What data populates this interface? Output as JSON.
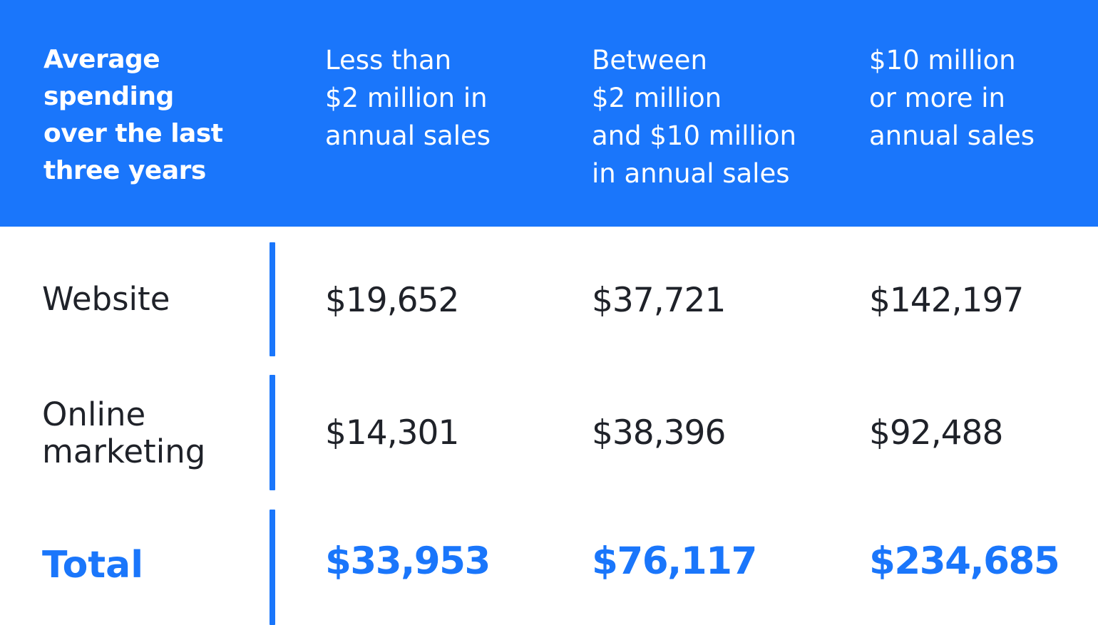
{
  "chart_data": {
    "type": "table",
    "title": "",
    "columns": [
      "Average\nspending\nover the last\nthree years",
      "Less than\n$2 million in\nannual sales",
      "Between\n$2 million\nand $10 million\nin annual sales",
      "$10 million\nor more in\nannual sales"
    ],
    "rows": [
      {
        "label": "Website",
        "values": [
          "$19,652",
          "$37,721",
          "$142,197"
        ]
      },
      {
        "label": "Online\nmarketing",
        "values": [
          "$14,301",
          "$38,396",
          "$92,488"
        ]
      },
      {
        "label": "Total",
        "values": [
          "$33,953",
          "$76,117",
          "$234,685"
        ]
      }
    ]
  },
  "colors": {
    "accent": "#1a76fb",
    "text": "#1f2229",
    "background": "#ffffff",
    "header_text": "#ffffff"
  }
}
